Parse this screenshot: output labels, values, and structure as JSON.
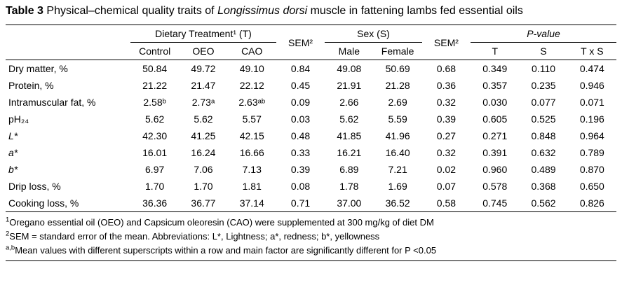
{
  "colors": {
    "text": "#000000",
    "background": "#ffffff",
    "rule": "#000000"
  },
  "title": {
    "label": "Table 3",
    "before_italic": " Physical–chemical quality traits of ",
    "species": "Longissimus dorsi",
    "after_italic": " muscle in fattening lambs fed essential oils"
  },
  "table": {
    "header": {
      "group_dietary": "Dietary Treatment¹ (T)",
      "sem1": "SEM²",
      "group_sex": "Sex (S)",
      "sem2": "SEM²",
      "group_pvalue": "P-value",
      "sub": [
        "Control",
        "OEO",
        "CAO",
        "Male",
        "Female",
        "T",
        "S",
        "T x S"
      ]
    },
    "rows": [
      {
        "label": "Dry matter, %",
        "italic": false,
        "values": [
          "50.84",
          "49.72",
          "49.10",
          "0.84",
          "49.08",
          "50.69",
          "0.68",
          "0.349",
          "0.110",
          "0.474"
        ]
      },
      {
        "label": "Protein, %",
        "italic": false,
        "values": [
          "21.22",
          "21.47",
          "22.12",
          "0.45",
          "21.91",
          "21.28",
          "0.36",
          "0.357",
          "0.235",
          "0.946"
        ]
      },
      {
        "label": "Intramuscular fat, %",
        "italic": false,
        "values": [
          "2.58ᵇ",
          "2.73ᵃ",
          "2.63ᵃᵇ",
          "0.09",
          "2.66",
          "2.69",
          "0.32",
          "0.030",
          "0.077",
          "0.071"
        ]
      },
      {
        "label": "pH₂₄",
        "italic": false,
        "values": [
          "5.62",
          "5.62",
          "5.57",
          "0.03",
          "5.62",
          "5.59",
          "0.39",
          "0.605",
          "0.525",
          "0.196"
        ]
      },
      {
        "label": "L*",
        "italic": true,
        "values": [
          "42.30",
          "41.25",
          "42.15",
          "0.48",
          "41.85",
          "41.96",
          "0.27",
          "0.271",
          "0.848",
          "0.964"
        ]
      },
      {
        "label": "a*",
        "italic": true,
        "values": [
          "16.01",
          "16.24",
          "16.66",
          "0.33",
          "16.21",
          "16.40",
          "0.32",
          "0.391",
          "0.632",
          "0.789"
        ]
      },
      {
        "label": "b*",
        "italic": true,
        "values": [
          "6.97",
          "7.06",
          "7.13",
          "0.39",
          "6.89",
          "7.21",
          "0.02",
          "0.960",
          "0.489",
          "0.870"
        ]
      },
      {
        "label": "Drip loss, %",
        "italic": false,
        "values": [
          "1.70",
          "1.70",
          "1.81",
          "0.08",
          "1.78",
          "1.69",
          "0.07",
          "0.578",
          "0.368",
          "0.650"
        ]
      },
      {
        "label": "Cooking loss, %",
        "italic": false,
        "values": [
          "36.36",
          "36.77",
          "37.14",
          "0.71",
          "37.00",
          "36.52",
          "0.58",
          "0.745",
          "0.562",
          "0.826"
        ]
      }
    ]
  },
  "footnotes": [
    {
      "marker": "1",
      "text": "Oregano essential oil (OEO) and Capsicum oleoresin (CAO) were supplemented at 300 mg/kg of diet DM"
    },
    {
      "marker": "2",
      "text": "SEM = standard error of the mean. Abbreviations: L*, Lightness; a*, redness; b*, yellowness"
    },
    {
      "marker": "a,b",
      "text": "Mean values with different superscripts within a row and main factor are significantly different for P <0.05"
    }
  ]
}
